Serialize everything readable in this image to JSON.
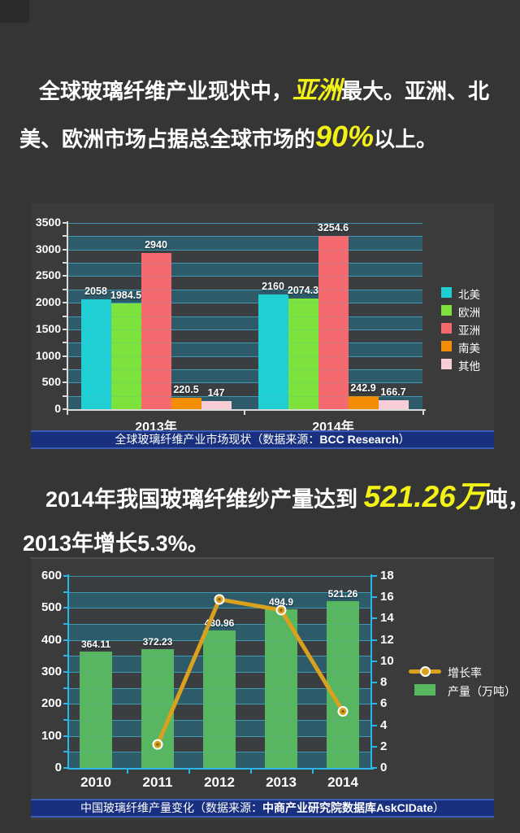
{
  "headline": {
    "line1": [
      {
        "text": "全球玻璃纤维产业现状中，",
        "style": "normal"
      },
      {
        "text": "亚洲",
        "style": "highlight"
      },
      {
        "text": "最大。亚洲、北",
        "style": "normal"
      }
    ],
    "line2": [
      {
        "text": "美、欧洲市场占据总全球市场的",
        "style": "normal"
      },
      {
        "text": "90%",
        "style": "highlight-large"
      },
      {
        "text": "以上。",
        "style": "normal"
      }
    ]
  },
  "paragraph2": {
    "line1": [
      {
        "text": "2014年我国玻璃纤维纱产量达到 ",
        "style": "normal"
      },
      {
        "text": "521.26万",
        "style": "highlight-xl"
      },
      {
        "text": "吨，比",
        "style": "normal"
      }
    ],
    "line2": [
      {
        "text": "2013年增长5.3%。",
        "style": "normal"
      }
    ]
  },
  "colors": {
    "background": "#353535",
    "panel": "#3b3b3b",
    "highlight_yellow": "#f3f218",
    "band_teal": "#2d5b6a",
    "band_gray": "#3a3e41",
    "gridline": "#3f93a9",
    "axis_white": "#d9d9d9",
    "axis_cyan": "#2ab6e9",
    "caption_bg": "#19307e",
    "caption_border": "#3c5cb5",
    "line_gold": "#d9a11d"
  },
  "chart_data": [
    {
      "type": "bar",
      "title": "全球玻璃纤维产业市场现状（数据来源：BCC Research）",
      "caption": {
        "prefix": "全球玻璃纤维产业市场现状（数据来源：",
        "source": "BCC Research",
        "suffix": "）"
      },
      "categories": [
        "2013年",
        "2014年"
      ],
      "series": [
        {
          "name": "北美",
          "color": "#20cfd4",
          "values": [
            2058,
            2160
          ]
        },
        {
          "name": "欧洲",
          "color": "#7de23c",
          "values": [
            1984.5,
            2074.3
          ]
        },
        {
          "name": "亚洲",
          "color": "#f56a6e",
          "values": [
            2940,
            3254.6
          ]
        },
        {
          "name": "南美",
          "color": "#f38d04",
          "values": [
            220.5,
            242.9
          ]
        },
        {
          "name": "其他",
          "color": "#f9cdd6",
          "values": [
            147,
            166.7
          ]
        }
      ],
      "ylim": [
        0,
        3500
      ],
      "ytick_step": 500,
      "grid_step": 250,
      "grid": "on",
      "legend_position": "right",
      "value_labels": true
    },
    {
      "type": "bar+line",
      "title": "中国玻璃纤维产量变化（数据来源：中商产业研究院数据库AskCIDate）",
      "caption": {
        "prefix": "中国玻璃纤维产量变化（数据来源：",
        "source": "中商产业研究院数据库AskCIDate",
        "suffix": "）"
      },
      "categories": [
        "2010",
        "2011",
        "2012",
        "2013",
        "2014"
      ],
      "series": [
        {
          "name": "产量（万吨）",
          "kind": "bar",
          "axis": "left",
          "color": "#58b560",
          "values": [
            364.11,
            372.23,
            430.96,
            494.9,
            521.26
          ]
        },
        {
          "name": "增长率",
          "kind": "line",
          "axis": "right",
          "color": "#d9a11d",
          "values": [
            null,
            2.2,
            15.8,
            14.8,
            5.3
          ]
        }
      ],
      "ylim_left": [
        0,
        600
      ],
      "ytick_left": 100,
      "grid_step_left": 50,
      "ylim_right": [
        0,
        18
      ],
      "ytick_right": 2,
      "grid": "on",
      "legend_position": "right",
      "value_labels": true
    }
  ]
}
